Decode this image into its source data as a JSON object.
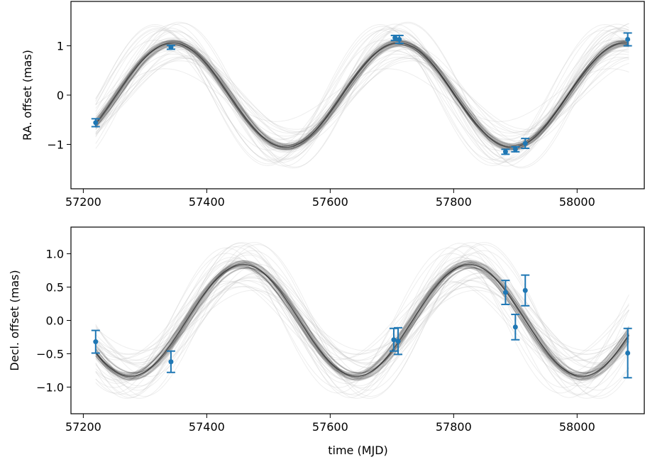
{
  "chart_data": [
    {
      "type": "scatter",
      "title": "",
      "xlabel": "",
      "ylabel": "RA. offset (mas)",
      "xlim": [
        57180,
        58110
      ],
      "ylim": [
        -1.9,
        1.9
      ],
      "xticks": [
        "57200",
        "57400",
        "57600",
        "57800",
        "58000"
      ],
      "yticks": [
        "−1",
        "0",
        "1"
      ],
      "grid": false,
      "model_curve": {
        "amplitude": 1.06,
        "period_days": 366,
        "peak_mjd": 57345
      },
      "points": [
        {
          "x": 57220,
          "y": -0.56,
          "err": 0.08
        },
        {
          "x": 57342,
          "y": 0.97,
          "err": 0.04
        },
        {
          "x": 57705,
          "y": 1.16,
          "err": 0.05
        },
        {
          "x": 57712,
          "y": 1.13,
          "err": 0.08
        },
        {
          "x": 57884,
          "y": -1.15,
          "err": 0.05
        },
        {
          "x": 57900,
          "y": -1.1,
          "err": 0.05
        },
        {
          "x": 57916,
          "y": -0.98,
          "err": 0.1
        },
        {
          "x": 58082,
          "y": 1.13,
          "err": 0.13
        }
      ]
    },
    {
      "type": "scatter",
      "title": "",
      "xlabel": "time (MJD)",
      "ylabel": "Decl. offset (mas)",
      "xlim": [
        57180,
        58110
      ],
      "ylim": [
        -1.4,
        1.4
      ],
      "xticks": [
        "57200",
        "57400",
        "57600",
        "57800",
        "58000"
      ],
      "yticks": [
        "1.0",
        "0.5",
        "0.0",
        "−0.5",
        "−1.0"
      ],
      "grid": false,
      "model_curve": {
        "amplitude": 0.84,
        "period_days": 366,
        "peak_mjd": 57459
      },
      "points": [
        {
          "x": 57220,
          "y": -0.32,
          "err": 0.17
        },
        {
          "x": 57342,
          "y": -0.62,
          "err": 0.16
        },
        {
          "x": 57703,
          "y": -0.29,
          "err": 0.17
        },
        {
          "x": 57710,
          "y": -0.31,
          "err": 0.2
        },
        {
          "x": 57884,
          "y": 0.42,
          "err": 0.18
        },
        {
          "x": 57900,
          "y": -0.1,
          "err": 0.19
        },
        {
          "x": 57916,
          "y": 0.45,
          "err": 0.23
        },
        {
          "x": 58082,
          "y": -0.49,
          "err": 0.37
        }
      ]
    }
  ],
  "colors": {
    "point": "#1f77b4",
    "model": "#2b2b2b",
    "model_faint": "#bdbdbd",
    "axis": "#000000"
  }
}
